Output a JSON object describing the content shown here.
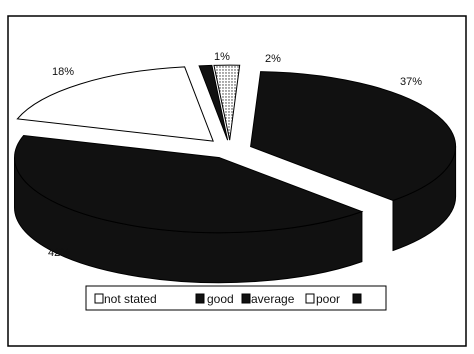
{
  "chart_data": {
    "type": "pie",
    "style": "3d-exploded",
    "slices": [
      {
        "label": "not stated",
        "value": 1,
        "data_label": "1%",
        "color": "#111111"
      },
      {
        "label": "good",
        "value": 37,
        "data_label": "37%",
        "color": "#111111"
      },
      {
        "label": "average",
        "value": 42,
        "data_label": "42%",
        "color": "#111111"
      },
      {
        "label": "poor",
        "value": 18,
        "data_label": "18%",
        "color": "#ffffff"
      },
      {
        "label": "",
        "value": 2,
        "data_label": "2%",
        "color": "#d9d9d9"
      }
    ],
    "legend": {
      "placement": "bottom",
      "entries": [
        "not stated",
        "good",
        "average",
        "poor",
        ""
      ]
    },
    "title": "",
    "grid": false
  }
}
